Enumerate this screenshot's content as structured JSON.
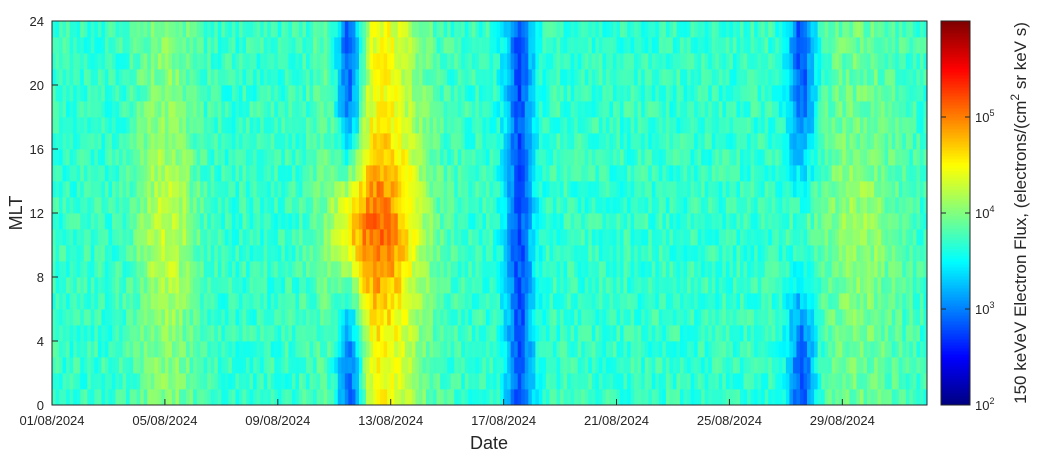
{
  "chart_data": {
    "type": "heatmap",
    "title": "",
    "xlabel": "Date",
    "ylabel": "MLT",
    "x_range": [
      "01/08/2024",
      "01/09/2024"
    ],
    "x_ticks": [
      "01/08/2024",
      "05/08/2024",
      "09/08/2024",
      "13/08/2024",
      "17/08/2024",
      "21/08/2024",
      "25/08/2024",
      "29/08/2024"
    ],
    "ylim": [
      0,
      24
    ],
    "y_ticks": [
      "0",
      "4",
      "8",
      "12",
      "16",
      "20",
      "24"
    ],
    "y_bin_size_hours": 1,
    "colorbar": {
      "label_main": "150 keVeV Electron Flux, (electrons/(cm",
      "label_sup": "2",
      "label_tail": " sr keV s)",
      "scale": "log",
      "range": [
        100,
        1000000
      ],
      "ticks": [
        {
          "base": "10",
          "exp": "2",
          "value": 100
        },
        {
          "base": "10",
          "exp": "3",
          "value": 1000
        },
        {
          "base": "10",
          "exp": "4",
          "value": 10000
        },
        {
          "base": "10",
          "exp": "5",
          "value": 100000
        }
      ],
      "colormap": "jet"
    },
    "flux_log10_features": {
      "baseline": 3.7,
      "enhancements": [
        {
          "start": "04/08/2024",
          "end": "06/08/2024",
          "peak": 4.3
        },
        {
          "start": "11/08/2024",
          "end": "14/08/2024",
          "peak": 5.1
        },
        {
          "start": "28/08/2024",
          "end": "31/08/2024",
          "peak": 4.1
        }
      ],
      "dropouts": [
        {
          "start": "11/08/2024",
          "end": "12/08/2024",
          "min": 2.4,
          "mlt": "night"
        },
        {
          "start": "17/08/2024",
          "end": "18/08/2024",
          "min": 2.6,
          "mlt": "all"
        },
        {
          "start": "27/08/2024",
          "end": "28/08/2024",
          "min": 2.8,
          "mlt": "night"
        }
      ]
    }
  }
}
